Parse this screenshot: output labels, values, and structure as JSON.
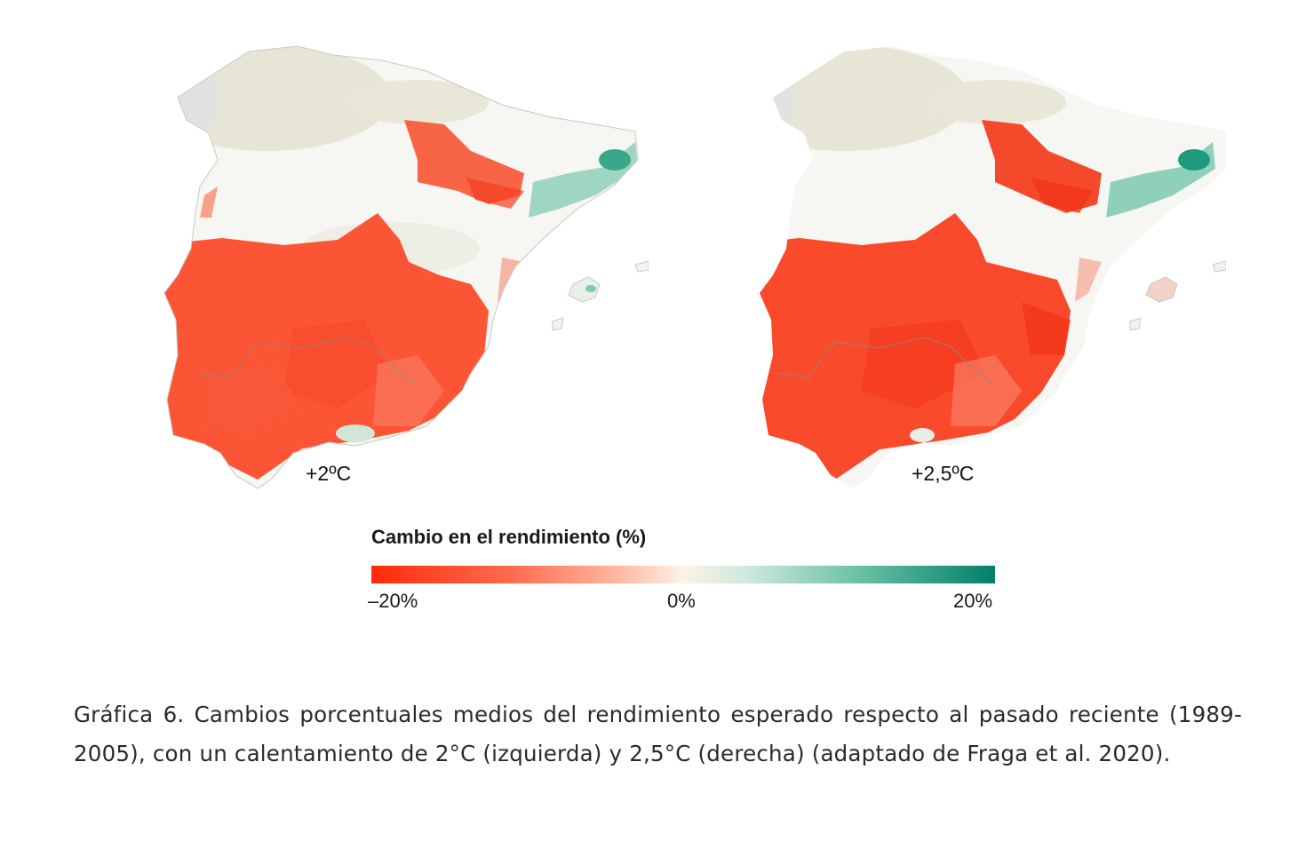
{
  "maps": {
    "left": {
      "label": "+2ºC"
    },
    "right": {
      "label": "+2,5ºC"
    }
  },
  "legend": {
    "title": "Cambio en el rendimiento (%)",
    "min_label": "–20%",
    "mid_label": "0%",
    "max_label": "20%",
    "colors": {
      "negative": "#ff2a0a",
      "neutral": "#fdf3e7",
      "positive": "#00806a"
    }
  },
  "caption": "Gráfica 6. Cambios porcentuales medios del rendimiento esperado respecto al pasado reciente (1989-2005), con un calentamiento de 2°C (izquierda)  y 2,5°C (derecha) (adaptado de Fraga et al. 2020)."
}
